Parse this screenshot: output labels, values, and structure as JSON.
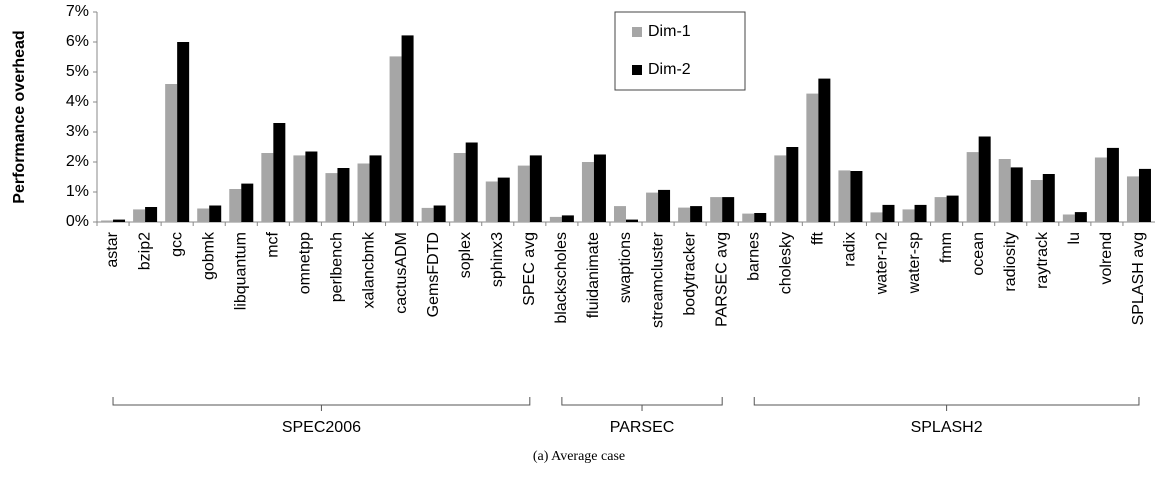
{
  "chart_data": {
    "type": "bar",
    "caption": "(a) Average case",
    "y_label": "Performance overhead",
    "groups": [
      {
        "name": "SPEC2006",
        "categories": [
          "astar",
          "bzip2",
          "gcc",
          "gobmk",
          "libquantum",
          "mcf",
          "omnetpp",
          "perlbench",
          "xalancbmk",
          "cactusADM",
          "GemsFDTD",
          "soplex",
          "sphinx3",
          "SPEC avg"
        ]
      },
      {
        "name": "PARSEC",
        "categories": [
          "blackscholes",
          "fluidanimate",
          "swaptions",
          "streamcluster",
          "bodytracker",
          "PARSEC avg"
        ]
      },
      {
        "name": "SPLASH2",
        "categories": [
          "barnes",
          "cholesky",
          "fft",
          "radix",
          "water-n2",
          "water-sp",
          "fmm",
          "ocean",
          "radiosity",
          "raytrack",
          "lu",
          "volrend",
          "SPLASH avg"
        ]
      }
    ],
    "series": [
      {
        "name": "Dim-1",
        "color": "#a6a6a6",
        "values": [
          0.05,
          0.42,
          4.6,
          0.45,
          1.1,
          2.3,
          2.22,
          1.63,
          1.95,
          5.52,
          0.47,
          2.3,
          1.35,
          1.88,
          0.17,
          2.0,
          0.53,
          0.98,
          0.48,
          0.83,
          0.28,
          2.22,
          4.28,
          1.72,
          0.32,
          0.42,
          0.83,
          2.33,
          2.1,
          1.4,
          0.25,
          2.15,
          1.52
        ]
      },
      {
        "name": "Dim-2",
        "color": "#000000",
        "values": [
          0.08,
          0.5,
          6.0,
          0.55,
          1.28,
          3.3,
          2.35,
          1.8,
          2.22,
          6.22,
          0.55,
          2.65,
          1.48,
          2.22,
          0.22,
          2.25,
          0.08,
          1.07,
          0.53,
          0.83,
          0.3,
          2.5,
          4.78,
          1.7,
          0.57,
          0.57,
          0.88,
          2.85,
          1.82,
          1.6,
          0.33,
          2.47,
          1.77
        ]
      }
    ],
    "ylim": [
      0,
      7
    ],
    "yticks": [
      {
        "value": 0,
        "label": "0%"
      },
      {
        "value": 1,
        "label": "1%"
      },
      {
        "value": 2,
        "label": "2%"
      },
      {
        "value": 3,
        "label": "3%"
      },
      {
        "value": 4,
        "label": "4%"
      },
      {
        "value": 5,
        "label": "5%"
      },
      {
        "value": 6,
        "label": "6%"
      },
      {
        "value": 7,
        "label": "7%"
      }
    ],
    "grid": false,
    "legend": "top"
  }
}
